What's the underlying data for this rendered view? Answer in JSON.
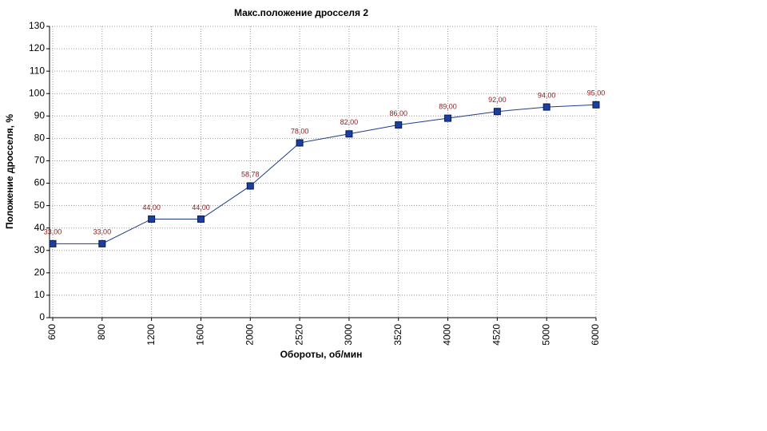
{
  "chart_data": {
    "type": "line",
    "title": "Макс.положение дросселя 2",
    "x_label": "Обороты, об/мин",
    "y_label": "Положение дросселя, %",
    "categories": [
      "600",
      "800",
      "1200",
      "1600",
      "2000",
      "2520",
      "3000",
      "3520",
      "4000",
      "4520",
      "5000",
      "6000"
    ],
    "values": [
      33,
      33,
      44,
      44,
      58.78,
      78,
      82,
      86,
      89,
      92,
      94,
      95
    ],
    "value_labels": [
      "33,00",
      "33,00",
      "44,00",
      "44,00",
      "58,78",
      "78,00",
      "82,00",
      "86,00",
      "89,00",
      "92,00",
      "94,00",
      "95,00"
    ],
    "color": "#1f3c88",
    "ylim": [
      0,
      130
    ],
    "yticks": [
      0,
      10,
      20,
      30,
      40,
      50,
      60,
      70,
      80,
      90,
      100,
      110,
      120,
      130
    ],
    "grid": true
  }
}
